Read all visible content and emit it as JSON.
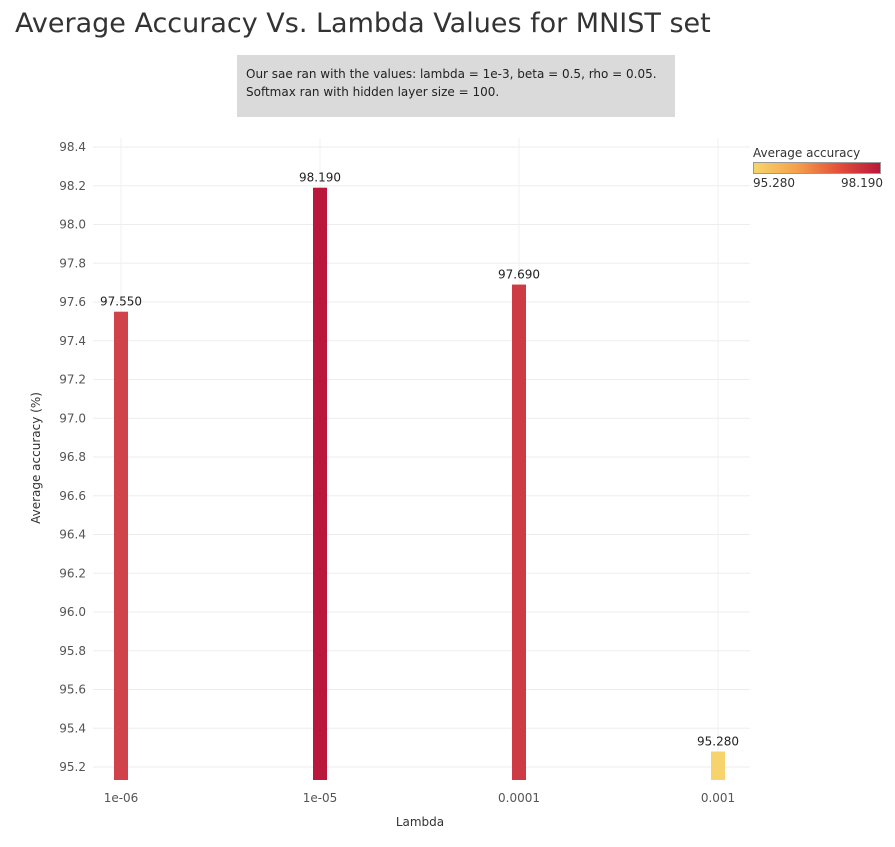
{
  "title": "Average Accuracy Vs. Lambda Values for MNIST set",
  "note": {
    "line1": "Our sae ran with the values: lambda = 1e-3, beta = 0.5, rho = 0.05.",
    "line2": "Softmax ran with hidden layer size = 100."
  },
  "legend": {
    "title": "Average accuracy",
    "min_label": "95.280",
    "max_label": "98.190",
    "colors": [
      "#f6d56d",
      "#f6a24b",
      "#e4513a",
      "#b9173b"
    ]
  },
  "chart_data": {
    "type": "bar",
    "categories": [
      "1e-06",
      "1e-05",
      "0.0001",
      "0.001"
    ],
    "values": [
      97.55,
      98.19,
      97.69,
      95.28
    ],
    "data_labels": [
      "97.550",
      "98.190",
      "97.690",
      "95.280"
    ],
    "bar_colors": [
      "#d0434a",
      "#b9173b",
      "#cd3c45",
      "#f6d36c"
    ],
    "xlabel": "Lambda",
    "ylabel": "Average accuracy (%)",
    "ylim": [
      95.1,
      98.45
    ],
    "yticks": [
      95.2,
      95.4,
      95.6,
      95.8,
      96.0,
      96.2,
      96.4,
      96.6,
      96.8,
      97.0,
      97.2,
      97.4,
      97.6,
      97.8,
      98.0,
      98.2,
      98.4
    ],
    "ytick_labels": [
      "95.2",
      "95.4",
      "95.6",
      "95.8",
      "96.0",
      "96.2",
      "96.4",
      "96.6",
      "96.8",
      "97.0",
      "97.2",
      "97.4",
      "97.6",
      "97.8",
      "98.0",
      "98.2",
      "98.4"
    ],
    "grid": true,
    "legend_position": "top-right"
  }
}
